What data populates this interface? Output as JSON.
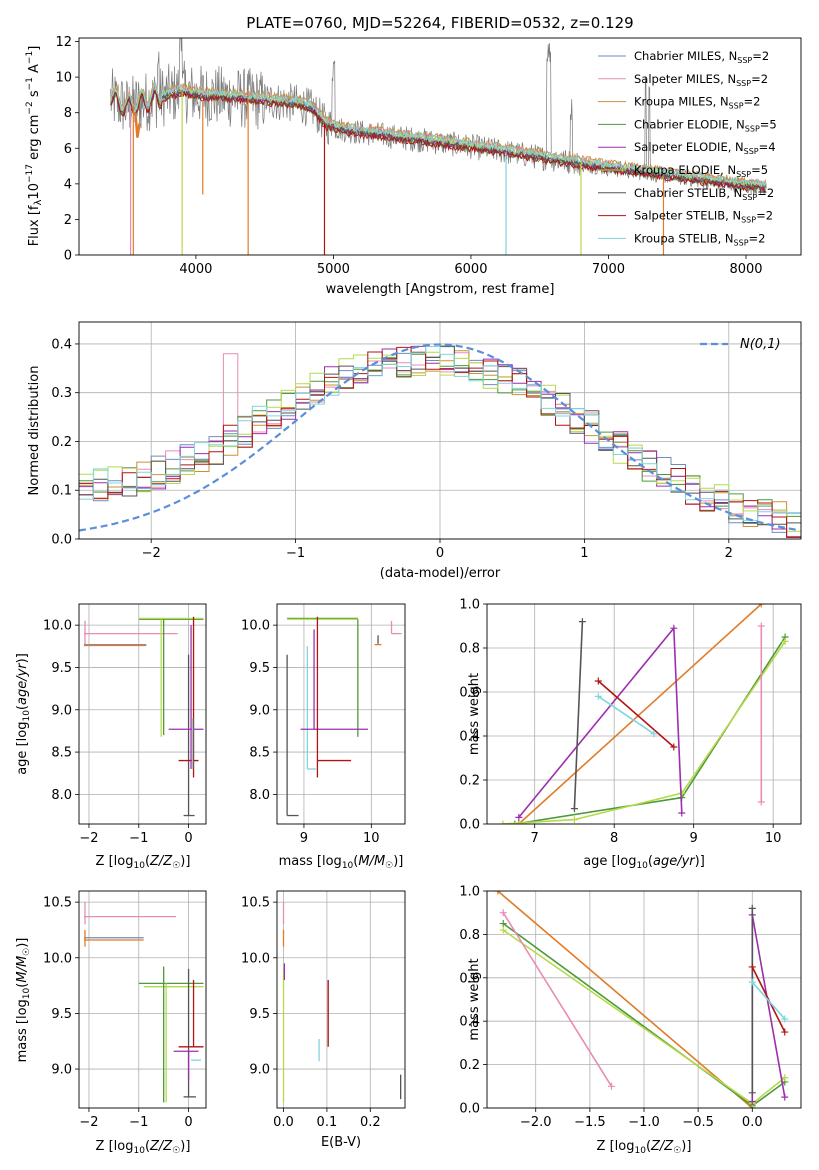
{
  "colors": {
    "chabrier_miles": "#6c8ebf",
    "salpeter_miles": "#e88cb6",
    "kroupa_miles": "#c8923a",
    "chabrier_elodie": "#4c9a3a",
    "salpeter_elodie": "#9b2fae",
    "kroupa_elodie": "#b6d94a",
    "chabrier_stelib": "#555555",
    "salpeter_stelib": "#b21414",
    "kroupa_stelib": "#7dd6dc",
    "normal": "#5b8fd9",
    "grid": "#b0b0b0",
    "data_gray": "#7a7a7a",
    "orange": "#e07b29"
  },
  "chart_data": [
    {
      "id": "spectrum",
      "type": "line",
      "title": "PLATE=0760, MJD=52264, FIBERID=0532, z=0.129",
      "xlabel": "wavelength [Angstrom, rest frame]",
      "ylabel": "Flux [f_λ10^-17 erg cm^-2 s^-1 A^-1]",
      "xlim": [
        3150,
        8400
      ],
      "ylim": [
        0,
        12.2
      ],
      "xticks": [
        "4000",
        "5000",
        "6000",
        "7000",
        "8000"
      ],
      "yticks": [
        "0",
        "2",
        "4",
        "6",
        "8",
        "10",
        "12"
      ],
      "grid": false,
      "legend_position": "top-right",
      "legend": [
        "Chabrier MILES, N_SSP=2",
        "Salpeter MILES, N_SSP=2",
        "Kroupa MILES, N_SSP=2",
        "Chabrier ELODIE, N_SSP=5",
        "Salpeter ELODIE, N_SSP=4",
        "Kroupa ELODIE, N_SSP=5",
        "Chabrier STELIB, N_SSP=2",
        "Salpeter STELIB, N_SSP=2",
        "Kroupa STELIB, N_SSP=2"
      ],
      "continuum_x": [
        3380,
        3500,
        3700,
        3900,
        4000,
        4200,
        4500,
        4750,
        4850,
        4950,
        5100,
        5500,
        6000,
        6500,
        7000,
        7500,
        8000,
        8150
      ],
      "continuum_y": [
        8.8,
        8.3,
        8.8,
        9.2,
        9.0,
        8.9,
        8.7,
        8.5,
        8.2,
        7.3,
        7.0,
        6.6,
        6.1,
        5.5,
        4.9,
        4.4,
        3.9,
        3.8
      ]
    },
    {
      "id": "residuals",
      "type": "histogram",
      "xlabel": "(data-model)/error",
      "ylabel": "Normed distribution",
      "xlim": [
        -2.5,
        2.5
      ],
      "ylim": [
        0,
        0.445
      ],
      "xticks": [
        "−2",
        "−1",
        "0",
        "1",
        "2"
      ],
      "yticks": [
        "0.0",
        "0.1",
        "0.2",
        "0.3",
        "0.4"
      ],
      "grid": true,
      "legend_position": "top-right",
      "normal_label": "N(0,1)",
      "bin_width": 0.1,
      "base_envelope_x": [
        -2.5,
        -2.0,
        -1.5,
        -1.0,
        -0.5,
        0.0,
        0.5,
        1.0,
        1.5,
        2.0,
        2.5
      ],
      "base_envelope_y": [
        0.1,
        0.13,
        0.19,
        0.29,
        0.36,
        0.37,
        0.33,
        0.24,
        0.14,
        0.07,
        0.03
      ]
    },
    {
      "id": "age_vs_Z",
      "type": "scatter",
      "xlabel": "Z [log10(Z/Z☉)]",
      "ylabel": "age  [log10(age/yr)]",
      "xlim": [
        -2.2,
        0.35
      ],
      "ylim": [
        7.65,
        10.25
      ],
      "xticks": [
        "−2",
        "−1",
        "0"
      ],
      "yticks": [
        "8.0",
        "8.5",
        "9.0",
        "9.5",
        "10.0"
      ],
      "grid": true
    },
    {
      "id": "age_vs_mass",
      "type": "scatter",
      "xlabel": "mass [log10(M/M☉)]",
      "xlim": [
        8.6,
        10.5
      ],
      "ylim": [
        7.65,
        10.25
      ],
      "xticks": [
        "9",
        "10"
      ],
      "yticks": [
        "8.0",
        "8.5",
        "9.0",
        "9.5",
        "10.0"
      ],
      "grid": true
    },
    {
      "id": "weight_vs_age",
      "type": "line",
      "xlabel": "age  [log10(age/yr)]",
      "ylabel": "mass weight",
      "xlim": [
        6.4,
        10.35
      ],
      "ylim": [
        0,
        1.0
      ],
      "xticks": [
        "7",
        "8",
        "9",
        "10"
      ],
      "yticks": [
        "0.0",
        "0.2",
        "0.4",
        "0.6",
        "0.8",
        "1.0"
      ],
      "grid": true
    },
    {
      "id": "mass_vs_Z",
      "type": "scatter",
      "xlabel": "Z [log10(Z/Z☉)]",
      "ylabel": "mass [log10(M/M☉)]",
      "xlim": [
        -2.2,
        0.35
      ],
      "ylim": [
        8.65,
        10.6
      ],
      "xticks": [
        "−2",
        "−1",
        "0"
      ],
      "yticks": [
        "9.0",
        "9.5",
        "10.0",
        "10.5"
      ],
      "grid": true
    },
    {
      "id": "mass_vs_ebv",
      "type": "scatter",
      "xlabel": "E(B-V)",
      "xlim": [
        -0.015,
        0.28
      ],
      "ylim": [
        8.65,
        10.6
      ],
      "xticks": [
        "0.0",
        "0.1",
        "0.2"
      ],
      "yticks": [
        "9.0",
        "9.5",
        "10.0",
        "10.5"
      ],
      "grid": true
    },
    {
      "id": "weight_vs_Z",
      "type": "line",
      "xlabel": "Z [log10(Z/Z☉)]",
      "ylabel": "mass weight",
      "xlim": [
        -2.45,
        0.45
      ],
      "ylim": [
        0,
        1.0
      ],
      "xticks": [
        "−2.0",
        "−1.5",
        "−1.0",
        "−0.5",
        "0.0"
      ],
      "yticks": [
        "0.0",
        "0.2",
        "0.4",
        "0.6",
        "0.8",
        "1.0"
      ],
      "grid": true
    }
  ]
}
